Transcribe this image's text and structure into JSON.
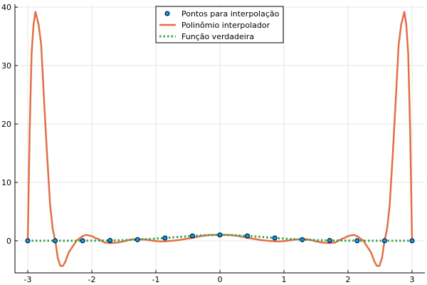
{
  "chart_data": {
    "type": "line",
    "title": "",
    "xlabel": "",
    "ylabel": "",
    "xlim": [
      -3.2,
      3.2
    ],
    "ylim": [
      -5.5,
      40.5
    ],
    "grid": true,
    "legend_position": "top-center",
    "x_ticks": [
      -3,
      -2,
      -1,
      0,
      1,
      2,
      3
    ],
    "x_tick_labels": [
      "-3",
      "-2",
      "-1",
      "0",
      "1",
      "2",
      "3"
    ],
    "y_ticks": [
      0,
      10,
      20,
      30,
      40
    ],
    "y_tick_labels": [
      "0",
      "10",
      "20",
      "30",
      "40"
    ],
    "series": [
      {
        "name": "Pontos para interpolação",
        "kind": "scatter",
        "color": "#009AFA",
        "x": [
          -3.0,
          -2.5714,
          -2.1429,
          -1.7143,
          -1.2857,
          -0.8571,
          -0.4286,
          0.0,
          0.4286,
          0.8571,
          1.2857,
          1.7143,
          2.1429,
          2.5714,
          3.0
        ],
        "y": [
          0.0012,
          0.0014,
          0.0101,
          0.0529,
          0.1914,
          0.4796,
          0.8318,
          1.0,
          0.8318,
          0.4796,
          0.1914,
          0.0529,
          0.0101,
          0.0014,
          0.0012
        ]
      },
      {
        "name": "Polinômio interpolador",
        "kind": "line",
        "color": "#E26F46",
        "x": [
          -3.0,
          -2.97,
          -2.94,
          -2.91,
          -2.88,
          -2.83,
          -2.79,
          -2.75,
          -2.7,
          -2.65,
          -2.61,
          -2.57,
          -2.53,
          -2.49,
          -2.45,
          -2.41,
          -2.36,
          -2.3,
          -2.24,
          -2.18,
          -2.14,
          -2.09,
          -2.04,
          -2.0,
          -1.95,
          -1.9,
          -1.85,
          -1.8,
          -1.71,
          -1.6,
          -1.5,
          -1.4,
          -1.29,
          -1.17,
          -1.05,
          -0.95,
          -0.86,
          -0.75,
          -0.65,
          -0.55,
          -0.43,
          -0.3,
          -0.15,
          0.0,
          0.15,
          0.3,
          0.43,
          0.55,
          0.65,
          0.75,
          0.86,
          0.95,
          1.05,
          1.17,
          1.29,
          1.4,
          1.5,
          1.6,
          1.71,
          1.8,
          1.85,
          1.9,
          1.95,
          2.0,
          2.04,
          2.09,
          2.14,
          2.18,
          2.24,
          2.3,
          2.36,
          2.41,
          2.45,
          2.49,
          2.53,
          2.57,
          2.61,
          2.65,
          2.7,
          2.75,
          2.79,
          2.83,
          2.88,
          2.91,
          2.94,
          2.97,
          3.0
        ],
        "y": [
          0.0,
          19.0,
          32.0,
          37.0,
          39.2,
          37.0,
          33.5,
          25.0,
          15.0,
          6.0,
          2.0,
          0.0,
          -3.0,
          -4.3,
          -4.3,
          -3.5,
          -2.0,
          -1.0,
          0.0,
          0.5,
          0.8,
          1.0,
          0.9,
          0.8,
          0.5,
          0.3,
          0.0,
          -0.3,
          -0.4,
          -0.3,
          -0.1,
          0.2,
          0.3,
          0.2,
          0.0,
          -0.1,
          -0.1,
          0.0,
          0.1,
          0.3,
          0.5,
          0.8,
          1.0,
          1.0,
          1.0,
          0.8,
          0.5,
          0.3,
          0.1,
          0.0,
          -0.1,
          -0.1,
          0.0,
          0.2,
          0.3,
          0.2,
          -0.1,
          -0.3,
          -0.4,
          -0.3,
          0.0,
          0.3,
          0.5,
          0.8,
          0.9,
          1.0,
          0.8,
          0.5,
          0.0,
          -1.0,
          -2.0,
          -3.5,
          -4.3,
          -4.3,
          -3.0,
          0.0,
          2.0,
          6.0,
          15.0,
          25.0,
          33.5,
          37.0,
          39.2,
          37.0,
          32.0,
          19.0,
          0.0
        ]
      },
      {
        "name": "Função verdadeira",
        "kind": "line-dotted",
        "color": "#3EA44E",
        "x": [
          -3.0,
          -2.75,
          -2.5,
          -2.25,
          -2.0,
          -1.75,
          -1.5,
          -1.25,
          -1.0,
          -0.8,
          -0.6,
          -0.4,
          -0.2,
          0.0,
          0.2,
          0.4,
          0.6,
          0.8,
          1.0,
          1.25,
          1.5,
          1.75,
          2.0,
          2.25,
          2.5,
          2.75,
          3.0
        ],
        "y": [
          0.0012,
          0.0005,
          0.0019,
          0.0063,
          0.0183,
          0.0468,
          0.1054,
          0.2096,
          0.3679,
          0.5273,
          0.6977,
          0.8521,
          0.9608,
          1.0,
          0.9608,
          0.8521,
          0.6977,
          0.5273,
          0.3679,
          0.2096,
          0.1054,
          0.0468,
          0.0183,
          0.0063,
          0.0019,
          0.0005,
          0.0012
        ]
      }
    ]
  }
}
